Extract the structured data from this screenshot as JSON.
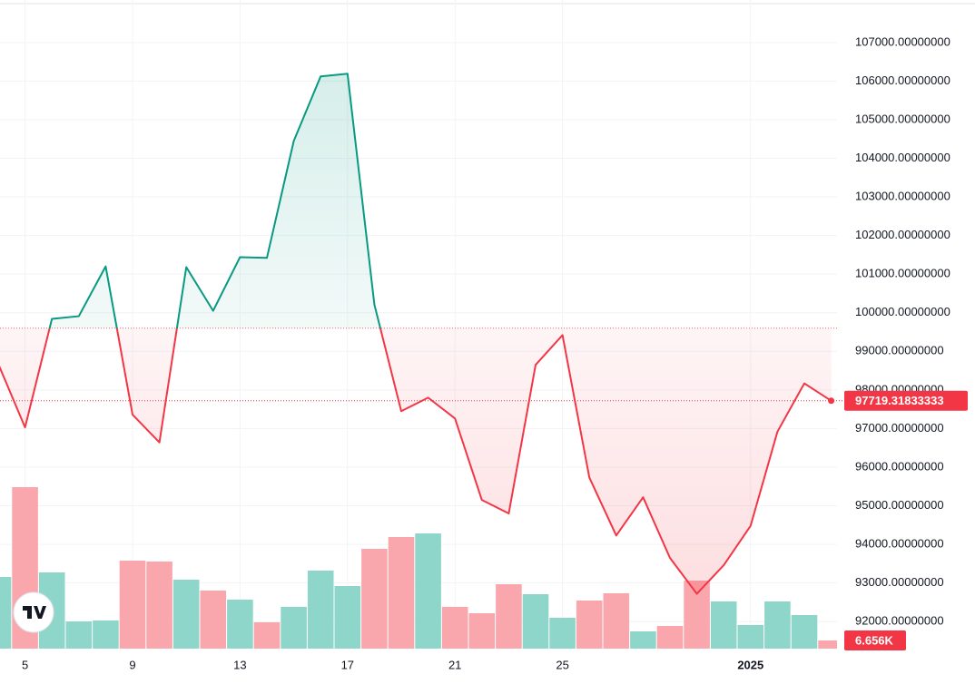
{
  "chart_data": {
    "type": "baseline",
    "categories": [
      null,
      "5",
      null,
      null,
      null,
      "9",
      null,
      null,
      null,
      "13",
      null,
      null,
      null,
      "17",
      null,
      null,
      null,
      "21",
      null,
      null,
      null,
      "25",
      null,
      null,
      null,
      null,
      null,
      null,
      "2025",
      null,
      null,
      null
    ],
    "values": [
      98680,
      97030,
      99840,
      99910,
      101200,
      97360,
      96640,
      101180,
      100050,
      101440,
      101420,
      104450,
      106120,
      106190,
      100210,
      97450,
      97800,
      97260,
      95150,
      94800,
      98650,
      99420,
      95730,
      94230,
      95220,
      93650,
      92720,
      93460,
      94480,
      96920,
      98170,
      97719.31833333
    ],
    "baseline": 99600,
    "up_color": "#089981",
    "down_color": "#f23645",
    "ylim": [
      91300,
      108100
    ],
    "yticks": [
      {
        "value": 92000,
        "label": "92000.00000000"
      },
      {
        "value": 93000,
        "label": "93000.00000000"
      },
      {
        "value": 94000,
        "label": "94000.00000000"
      },
      {
        "value": 95000,
        "label": "95000.00000000"
      },
      {
        "value": 96000,
        "label": "96000.00000000"
      },
      {
        "value": 97000,
        "label": "97000.00000000"
      },
      {
        "value": 98000,
        "label": "98000.00000000"
      },
      {
        "value": 99000,
        "label": "99000.00000000"
      },
      {
        "value": 100000,
        "label": "100000.00000000"
      },
      {
        "value": 101000,
        "label": "101000.00000000"
      },
      {
        "value": 102000,
        "label": "102000.00000000"
      },
      {
        "value": 103000,
        "label": "103000.00000000"
      },
      {
        "value": 104000,
        "label": "104000.00000000"
      },
      {
        "value": 105000,
        "label": "105000.00000000"
      },
      {
        "value": 106000,
        "label": "106000.00000000"
      },
      {
        "value": 107000,
        "label": "107000.00000000"
      }
    ],
    "grid": true,
    "volume": {
      "values": [
        58460,
        131720,
        62160,
        22200,
        22940,
        71780,
        71040,
        56240,
        47360,
        39960,
        21460,
        34040,
        63640,
        51060,
        81400,
        91020,
        93980,
        34040,
        28860,
        52540,
        44400,
        25160,
        39220,
        45140,
        14060,
        18500,
        55500,
        38480,
        19240,
        38480,
        27380,
        6656
      ],
      "colors": [
        "#8fd6ca",
        "#f9a7ad",
        "#8fd6ca",
        "#8fd6ca",
        "#8fd6ca",
        "#f9a7ad",
        "#f9a7ad",
        "#8fd6ca",
        "#f9a7ad",
        "#8fd6ca",
        "#f9a7ad",
        "#8fd6ca",
        "#8fd6ca",
        "#8fd6ca",
        "#f9a7ad",
        "#f9a7ad",
        "#8fd6ca",
        "#f9a7ad",
        "#f9a7ad",
        "#f9a7ad",
        "#8fd6ca",
        "#8fd6ca",
        "#f9a7ad",
        "#f9a7ad",
        "#8fd6ca",
        "#f9a7ad",
        "#f9a7ad",
        "#8fd6ca",
        "#8fd6ca",
        "#8fd6ca",
        "#8fd6ca",
        "#f9a7ad"
      ],
      "last_value_label": "6.656K"
    }
  }
}
